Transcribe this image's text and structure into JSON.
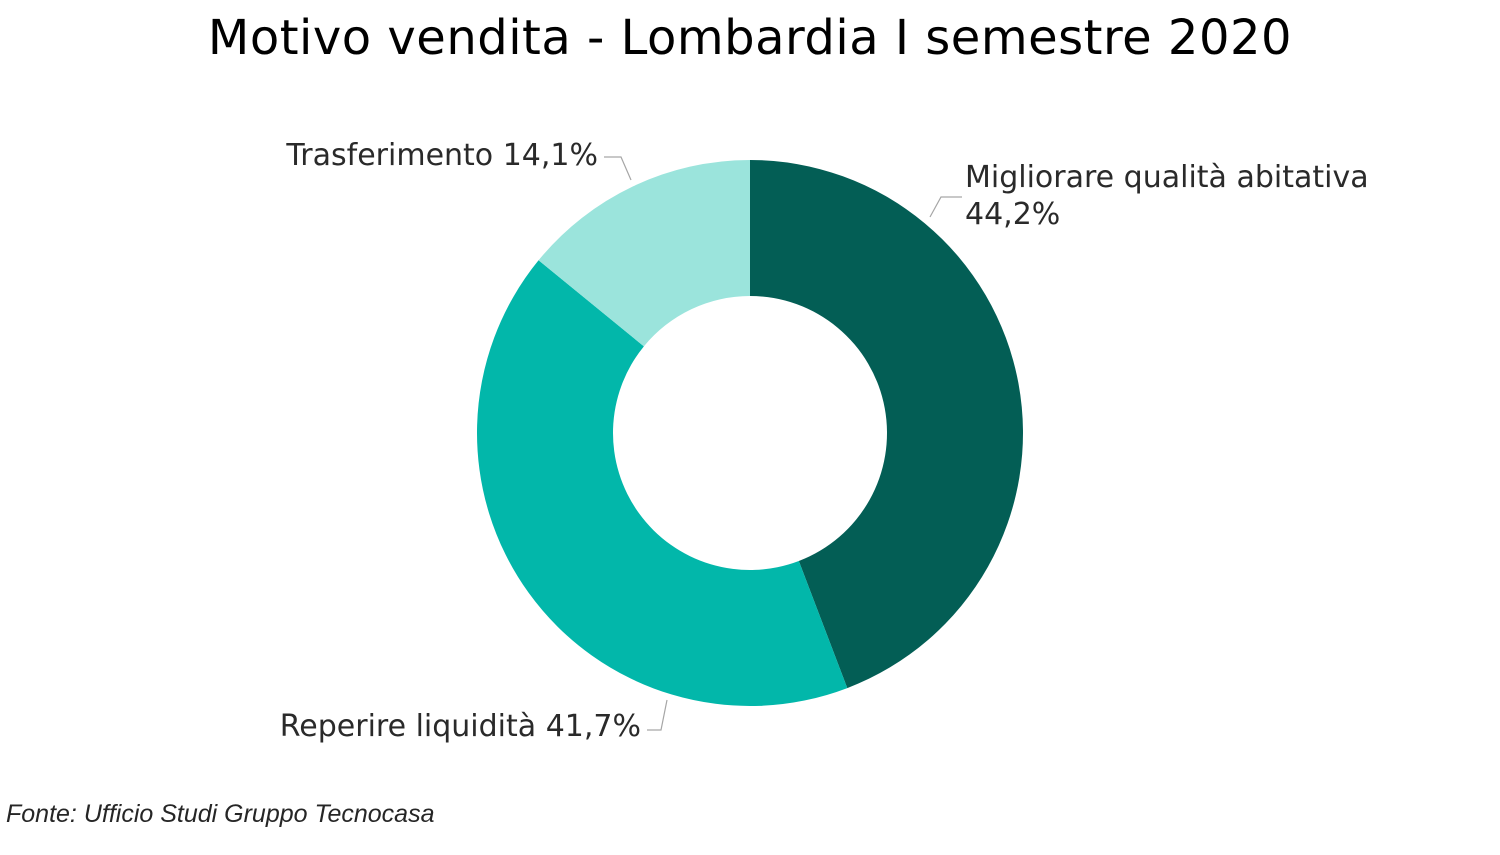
{
  "chart_data": {
    "type": "pie",
    "variant": "donut",
    "title": "Motivo vendita - Lombardia I semestre 2020",
    "slices": [
      {
        "label": "Migliorare qualità abitativa",
        "value": 44.2,
        "value_label": "44,2%",
        "color": "#035e55"
      },
      {
        "label": "Reperire liquidità",
        "value": 41.7,
        "value_label": "41,7%",
        "color": "#02b7aa"
      },
      {
        "label": "Trasferimento",
        "value": 14.1,
        "value_label": "14,1%",
        "color": "#9be4dc"
      }
    ],
    "start_angle": "12 o'clock",
    "direction": "clockwise",
    "legend": "none",
    "data_labels": "outside with leader lines"
  },
  "footer": {
    "source": "Fonte: Ufficio Studi Gruppo Tecnocasa"
  }
}
